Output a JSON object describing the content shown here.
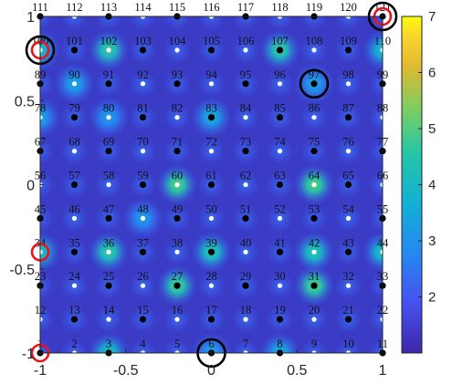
{
  "chart_data": {
    "type": "heatmap",
    "title": "",
    "xlabel": "",
    "ylabel": "",
    "xlim": [
      -1,
      1
    ],
    "ylim": [
      -1,
      1
    ],
    "x_ticks": [
      -1,
      -0.5,
      0,
      0.5,
      1
    ],
    "x_tick_labels": [
      "-1",
      "-0.5",
      "0",
      "0.5",
      "1"
    ],
    "y_ticks": [
      -1,
      -0.5,
      0,
      0.5,
      1
    ],
    "y_tick_labels": [
      "-1",
      "-0.5",
      "0",
      "0.5",
      "1"
    ],
    "colorbar": {
      "min": 1,
      "max": 7,
      "ticks": [
        2,
        3,
        4,
        5,
        6,
        7
      ],
      "tick_labels": [
        "2",
        "3",
        "4",
        "5",
        "6",
        "7"
      ],
      "colormap": "parula"
    },
    "grid": false,
    "node_grid": {
      "columns": 11,
      "rows": 11,
      "x_values": [
        -1,
        -0.8,
        -0.6,
        -0.4,
        -0.2,
        0,
        0.2,
        0.4,
        0.6,
        0.8,
        1
      ],
      "y_values": [
        -1,
        -0.8,
        -0.6,
        -0.4,
        -0.2,
        0,
        0.2,
        0.4,
        0.6,
        0.8,
        1
      ],
      "label_start": 1,
      "label_end": 121,
      "numbering": "row-major from bottom-left"
    },
    "black_points": [
      [
        -1,
        -1
      ],
      [
        -0.6,
        -1
      ],
      [
        0,
        -1
      ],
      [
        0.4,
        -1
      ],
      [
        1,
        -1
      ],
      [
        -0.8,
        -0.8
      ],
      [
        -0.4,
        -0.8
      ],
      [
        0,
        -0.8
      ],
      [
        0.4,
        -0.8
      ],
      [
        0.8,
        -0.8
      ],
      [
        -1,
        -0.6
      ],
      [
        -0.6,
        -0.6
      ],
      [
        -0.2,
        -0.6
      ],
      [
        0.2,
        -0.6
      ],
      [
        0.6,
        -0.6
      ],
      [
        1,
        -0.6
      ],
      [
        -0.8,
        -0.4
      ],
      [
        -0.4,
        -0.4
      ],
      [
        0,
        -0.4
      ],
      [
        0.4,
        -0.4
      ],
      [
        0.8,
        -0.4
      ],
      [
        -1,
        -0.2
      ],
      [
        -0.6,
        -0.2
      ],
      [
        -0.2,
        -0.2
      ],
      [
        0.2,
        -0.2
      ],
      [
        0.6,
        -0.2
      ],
      [
        1,
        -0.2
      ],
      [
        -0.8,
        0
      ],
      [
        -0.4,
        0
      ],
      [
        0,
        0
      ],
      [
        0.4,
        0
      ],
      [
        0.8,
        0
      ],
      [
        -1,
        0.2
      ],
      [
        -0.6,
        0.2
      ],
      [
        -0.2,
        0.2
      ],
      [
        0.2,
        0.2
      ],
      [
        0.6,
        0.2
      ],
      [
        1,
        0.2
      ],
      [
        -0.8,
        0.4
      ],
      [
        -0.4,
        0.4
      ],
      [
        0,
        0.4
      ],
      [
        0.4,
        0.4
      ],
      [
        0.8,
        0.4
      ],
      [
        -1,
        0.6
      ],
      [
        -0.6,
        0.6
      ],
      [
        -0.2,
        0.6
      ],
      [
        0.2,
        0.6
      ],
      [
        0.6,
        0.6
      ],
      [
        1,
        0.6
      ],
      [
        -0.8,
        0.8
      ],
      [
        -0.4,
        0.8
      ],
      [
        0,
        0.8
      ],
      [
        0.4,
        0.8
      ],
      [
        0.8,
        0.8
      ],
      [
        -1,
        1
      ],
      [
        -0.6,
        1
      ],
      [
        -0.2,
        1
      ],
      [
        0.2,
        1
      ],
      [
        0.6,
        1
      ],
      [
        1,
        1
      ]
    ],
    "hotspots": [
      {
        "x": -0.6,
        "y": -1,
        "value": 3.8
      },
      {
        "x": -0.6,
        "y": -0.4,
        "value": 4.2
      },
      {
        "x": -0.6,
        "y": 0.8,
        "value": 4.2
      },
      {
        "x": 0.4,
        "y": 0.8,
        "value": 4.2
      },
      {
        "x": -0.6,
        "y": 0.4,
        "value": 2.8
      },
      {
        "x": -0.2,
        "y": -0.6,
        "value": 4.4
      },
      {
        "x": -0.2,
        "y": 0,
        "value": 4.6
      },
      {
        "x": 0.6,
        "y": 0,
        "value": 4.6
      },
      {
        "x": 0.6,
        "y": -0.6,
        "value": 4.6
      },
      {
        "x": 0,
        "y": -0.4,
        "value": 4.0
      },
      {
        "x": 0,
        "y": 0.4,
        "value": 3.2
      },
      {
        "x": 0.6,
        "y": -0.4,
        "value": 4.0
      },
      {
        "x": 1,
        "y": -0.4,
        "value": 3.8
      },
      {
        "x": -1,
        "y": -0.4,
        "value": 3.8
      },
      {
        "x": -1,
        "y": 0.8,
        "value": 3.6
      },
      {
        "x": 1,
        "y": 0.8,
        "value": 3.6
      },
      {
        "x": -0.8,
        "y": 0.6,
        "value": 3.0
      },
      {
        "x": 0.6,
        "y": 0.6,
        "value": 3.0
      },
      {
        "x": -1,
        "y": 0.4,
        "value": 3.0
      },
      {
        "x": 0.4,
        "y": -1,
        "value": 3.2
      },
      {
        "x": 0,
        "y": -1,
        "value": 3.0
      },
      {
        "x": -0.4,
        "y": -0.2,
        "value": 2.8
      }
    ],
    "red_circles": [
      {
        "x": -1,
        "y": 0.8
      },
      {
        "x": -1,
        "y": -0.4
      },
      {
        "x": -1,
        "y": -1
      },
      {
        "x": 1,
        "y": 1
      }
    ],
    "black_circles": [
      {
        "x": -1,
        "y": 0.8
      },
      {
        "x": 1,
        "y": 1
      },
      {
        "x": 0.6,
        "y": 0.6
      },
      {
        "x": 0,
        "y": -1
      }
    ],
    "colors": {
      "background_low": "#3a3cc6",
      "white_point": "#ffffff",
      "black_point": "#000000",
      "red_circle": "#e8141c",
      "black_circle": "#000000",
      "axis_color": "#262626"
    }
  }
}
